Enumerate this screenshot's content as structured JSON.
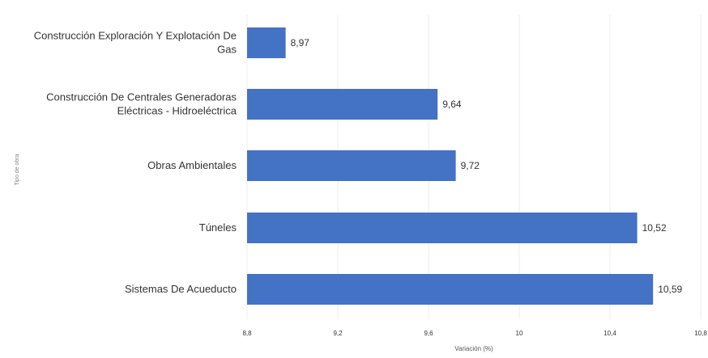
{
  "chart_data": {
    "type": "bar",
    "orientation": "horizontal",
    "categories": [
      [
        "Construcción Exploración Y Explotación De",
        "Gas"
      ],
      [
        "Construcción De Centrales Generadoras",
        "Eléctricas - Hidroeléctrica"
      ],
      [
        "Obras Ambientales"
      ],
      [
        "Túneles"
      ],
      [
        "Sistemas De Acueducto"
      ]
    ],
    "values": [
      8.97,
      9.64,
      9.72,
      10.52,
      10.59
    ],
    "value_labels": [
      "8,97",
      "9,64",
      "9,72",
      "10,52",
      "10,59"
    ],
    "xlabel": "Variación (%)",
    "ylabel": "Tipo de obra",
    "xlim": [
      8.8,
      10.8
    ],
    "xticks": [
      8.8,
      9.2,
      9.6,
      10.0,
      10.4,
      10.8
    ],
    "xtick_labels": [
      "8,8",
      "9,2",
      "9,6",
      "10",
      "10,4",
      "10,8"
    ],
    "grid": true,
    "bar_color": "#4472C4"
  }
}
